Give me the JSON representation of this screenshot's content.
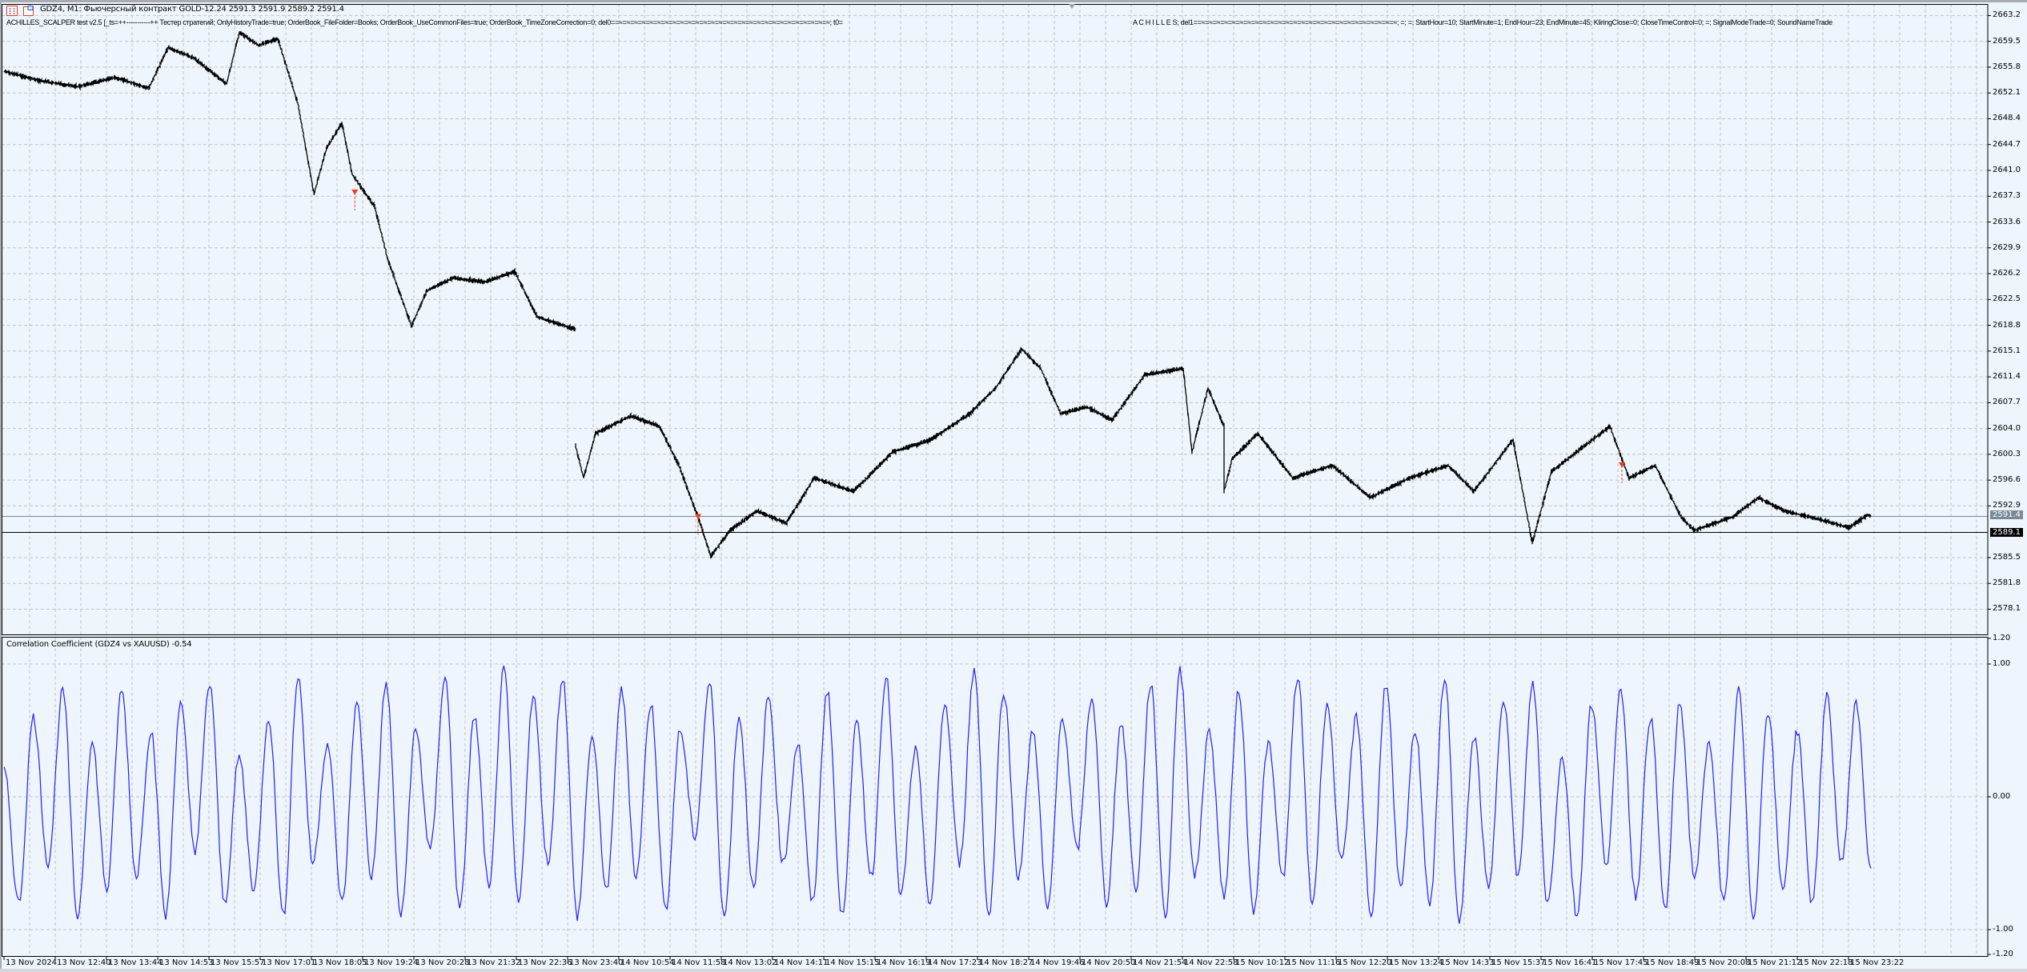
{
  "header": {
    "title": "GDZ4, M1:  Фьючерсный контракт GOLD-12.24  2591.3 2591.9 2589.2 2591.4",
    "params_line_1": "ACHILLES_SCALPER test v2.5 [_ts=++-----------++  Тестер стратегий; OnlyHistoryTrade=true; OrderBook_FileFolder=Books; OrderBook_UseCommonFiles=true; OrderBook_TimeZoneCorrection=0; del0==≈=≈=≈=≈=≈=≈=≈=≈=≈=≈=≈=≈=≈=≈=≈=≈=≈=≈=≈=≈=≈=≈=≈=≈=≈=≈=≈=≈; t0=",
    "params_line_2": "A C H I L L E S; del1==≈=≈=≈=≈=≈=≈=≈=≈=≈=≈=≈=≈=≈=≈=≈=≈=≈=≈=≈=≈=≈=≈=≈=≈=≈=≈; =; =; StartHour=10; StartMinute=1; EndHour=23; EndMinute=45; KliringClose=0; CloseTimeControl=0; =; SignalModeTrade=0; SoundNameTrade",
    "icons": [
      "one-click-trading-icon",
      "strategy-tester-icon"
    ]
  },
  "colors": {
    "background": "#eef5fc",
    "grid": "#c4c4c4",
    "price_line": "#000000",
    "indicator_line": "#1f1fff",
    "trade_marker": "#e8401c",
    "bid_line": "#7b8a99",
    "ask_line": "#000000"
  },
  "chart_data": [
    {
      "type": "line",
      "symbol": "GDZ4",
      "timeframe": "M1",
      "ylim": [
        2574.4,
        2666.9
      ],
      "grid": true,
      "y_ticks": [
        "2663.2",
        "2659.5",
        "2655.8",
        "2652.1",
        "2648.4",
        "2644.7",
        "2641.0",
        "2637.3",
        "2633.6",
        "2629.9",
        "2626.2",
        "2622.5",
        "2618.8",
        "2615.1",
        "2611.4",
        "2607.7",
        "2604.0",
        "2600.3",
        "2596.6",
        "2592.9",
        "2585.5",
        "2581.8",
        "2578.1"
      ],
      "x_ticks": [
        "13 Nov 2024",
        "13 Nov 12:40",
        "13 Nov 13:44",
        "13 Nov 14:53",
        "13 Nov 15:57",
        "13 Nov 17:01",
        "13 Nov 18:05",
        "13 Nov 19:24",
        "13 Nov 20:28",
        "13 Nov 21:32",
        "13 Nov 22:36",
        "13 Nov 23:40",
        "14 Nov 10:54",
        "14 Nov 11:58",
        "14 Nov 13:02",
        "14 Nov 14:11",
        "14 Nov 15:15",
        "14 Nov 16:19",
        "14 Nov 17:23",
        "14 Nov 18:27",
        "14 Nov 19:46",
        "14 Nov 20:50",
        "14 Nov 21:54",
        "14 Nov 22:58",
        "15 Nov 10:12",
        "15 Nov 11:16",
        "15 Nov 12:20",
        "15 Nov 13:24",
        "15 Nov 14:33",
        "15 Nov 15:37",
        "15 Nov 16:41",
        "15 Nov 17:45",
        "15 Nov 18:49",
        "15 Nov 20:08",
        "15 Nov 21:12",
        "15 Nov 22:18",
        "15 Nov 23:22"
      ],
      "price_labels": {
        "bid": "2591.4",
        "ask": "2589.1"
      },
      "segments": [
        [
          [
            "13 Nov 11:36",
            2655.2
          ],
          [
            "13 Nov 12:19",
            2653.9
          ],
          [
            "13 Nov 13:08",
            2653.0
          ],
          [
            "13 Nov 13:56",
            2654.3
          ],
          [
            "13 Nov 14:41",
            2652.8
          ],
          [
            "13 Nov 15:06",
            2658.6
          ],
          [
            "13 Nov 15:38",
            2657.1
          ],
          [
            "13 Nov 16:19",
            2653.4
          ],
          [
            "13 Nov 16:35",
            2660.8
          ],
          [
            "13 Nov 16:59",
            2658.9
          ],
          [
            "13 Nov 17:23",
            2659.9
          ],
          [
            "13 Nov 17:48",
            2650.6
          ],
          [
            "13 Nov 18:09",
            2637.6
          ],
          [
            "13 Nov 18:28",
            2644.1
          ],
          [
            "13 Nov 18:52",
            2647.8
          ],
          [
            "13 Nov 19:08",
            2640.4
          ],
          [
            "13 Nov 19:39",
            2635.8
          ],
          [
            "13 Nov 19:55",
            2628.4
          ],
          [
            "13 Nov 20:25",
            2618.7
          ],
          [
            "13 Nov 20:44",
            2623.7
          ],
          [
            "13 Nov 21:17",
            2625.6
          ],
          [
            "13 Nov 21:57",
            2625.0
          ],
          [
            "13 Nov 22:34",
            2626.5
          ],
          [
            "13 Nov 23:02",
            2620.0
          ],
          [
            "13 Nov 23:50",
            2618.2
          ]
        ],
        [
          [
            "14 Nov 10:00",
            2601.5
          ],
          [
            "14 Nov 10:10",
            2596.9
          ],
          [
            "14 Nov 10:25",
            2603.3
          ],
          [
            "14 Nov 11:09",
            2605.8
          ],
          [
            "14 Nov 11:45",
            2604.3
          ],
          [
            "14 Nov 12:09",
            2598.7
          ],
          [
            "14 Nov 12:33",
            2591.3
          ],
          [
            "14 Nov 12:49",
            2585.7
          ],
          [
            "14 Nov 13:14",
            2589.4
          ],
          [
            "14 Nov 13:50",
            2592.2
          ],
          [
            "14 Nov 14:28",
            2590.4
          ],
          [
            "14 Nov 15:03",
            2596.9
          ],
          [
            "14 Nov 15:52",
            2595.0
          ],
          [
            "14 Nov 16:41",
            2600.6
          ],
          [
            "14 Nov 17:29",
            2602.4
          ],
          [
            "14 Nov 18:17",
            2606.1
          ],
          [
            "14 Nov 18:55",
            2609.8
          ],
          [
            "14 Nov 19:35",
            2615.4
          ],
          [
            "14 Nov 20:01",
            2612.6
          ],
          [
            "14 Nov 20:26",
            2606.1
          ],
          [
            "14 Nov 20:58",
            2607.1
          ],
          [
            "14 Nov 21:30",
            2605.2
          ],
          [
            "14 Nov 22:11",
            2611.7
          ],
          [
            "14 Nov 22:59",
            2612.6
          ],
          [
            "14 Nov 23:10",
            2600.6
          ],
          [
            "14 Nov 23:30",
            2609.8
          ],
          [
            "14 Nov 23:50",
            2604.3
          ],
          [
            "15 Nov 10:00",
            2595.0
          ],
          [
            "15 Nov 10:10",
            2599.6
          ],
          [
            "15 Nov 10:42",
            2603.3
          ],
          [
            "15 Nov 11:26",
            2596.9
          ],
          [
            "15 Nov 12:15",
            2598.7
          ],
          [
            "15 Nov 13:03",
            2594.1
          ],
          [
            "15 Nov 13:54",
            2596.9
          ],
          [
            "15 Nov 14:45",
            2598.7
          ],
          [
            "15 Nov 15:17",
            2595.0
          ],
          [
            "15 Nov 16:06",
            2602.4
          ],
          [
            "15 Nov 16:30",
            2587.6
          ],
          [
            "15 Nov 16:54",
            2597.8
          ],
          [
            "15 Nov 17:35",
            2601.5
          ],
          [
            "15 Nov 18:07",
            2604.3
          ],
          [
            "15 Nov 18:31",
            2596.9
          ],
          [
            "15 Nov 19:07",
            2598.7
          ],
          [
            "15 Nov 19:47",
            2591.3
          ],
          [
            "15 Nov 20:07",
            2589.4
          ],
          [
            "15 Nov 20:55",
            2591.3
          ],
          [
            "15 Nov 21:28",
            2594.1
          ],
          [
            "15 Nov 22:01",
            2592.2
          ],
          [
            "15 Nov 22:35",
            2591.3
          ],
          [
            "15 Nov 23:23",
            2589.8
          ],
          [
            "15 Nov 23:47",
            2591.7
          ],
          [
            "15 Nov 23:50",
            2591.4
          ]
        ]
      ],
      "trade_markers": [
        [
          "13 Nov 19:12",
          2637.8
        ],
        [
          "14 Nov 12:33",
          2591.3
        ],
        [
          "15 Nov 18:22",
          2598.7
        ]
      ]
    },
    {
      "type": "line",
      "title": "Correlation Coefficient (GDZ4 vs XAUUSD) -0.54",
      "ylim": [
        -1.2,
        1.2
      ],
      "y_ticks": [
        "1.20",
        "1.00",
        "0.00",
        "-1.00",
        "-1.20"
      ],
      "grid": true,
      "values": [
        0.2,
        -0.8,
        0.6,
        -0.5,
        0.8,
        -0.9,
        0.4,
        -0.7,
        0.8,
        -0.6,
        0.5,
        -0.9,
        0.7,
        -0.4,
        0.85,
        -0.8,
        0.3,
        -0.7,
        0.6,
        -0.9,
        0.9,
        -0.5,
        0.4,
        -0.8,
        0.7,
        -0.6,
        0.85,
        -0.9,
        0.5,
        -0.4,
        0.9,
        -0.85,
        0.6,
        -0.7,
        0.95,
        -0.8,
        0.75,
        -0.5,
        0.9,
        -0.9,
        0.45,
        -0.7,
        0.8,
        -0.6,
        0.7,
        -0.85,
        0.5,
        -0.3,
        0.85,
        -0.9,
        0.6,
        -0.7,
        0.75,
        -0.5,
        0.4,
        -0.8,
        0.8,
        -0.9,
        0.55,
        -0.6,
        0.9,
        -0.75,
        0.35,
        -0.8,
        0.7,
        -0.5,
        0.95,
        -0.9,
        0.8,
        -0.6,
        0.5,
        -0.85,
        0.6,
        -0.4,
        0.75,
        -0.8,
        0.55,
        -0.7,
        0.85,
        -0.9,
        0.95,
        -0.6,
        0.5,
        -0.75,
        0.8,
        -0.85,
        0.4,
        -0.6,
        0.9,
        -0.8,
        0.7,
        -0.5,
        0.6,
        -0.9,
        0.85,
        -0.7,
        0.5,
        -0.8,
        0.9,
        -0.95,
        0.45,
        -0.7,
        0.75,
        -0.6,
        0.85,
        -0.8,
        0.3,
        -0.9,
        0.7,
        -0.5,
        0.8,
        -0.75,
        0.6,
        -0.85,
        0.7,
        -0.6,
        0.4,
        -0.8,
        0.8,
        -0.9,
        0.65,
        -0.7,
        0.5,
        -0.8,
        0.75,
        -0.5,
        0.7,
        -0.54
      ]
    }
  ]
}
